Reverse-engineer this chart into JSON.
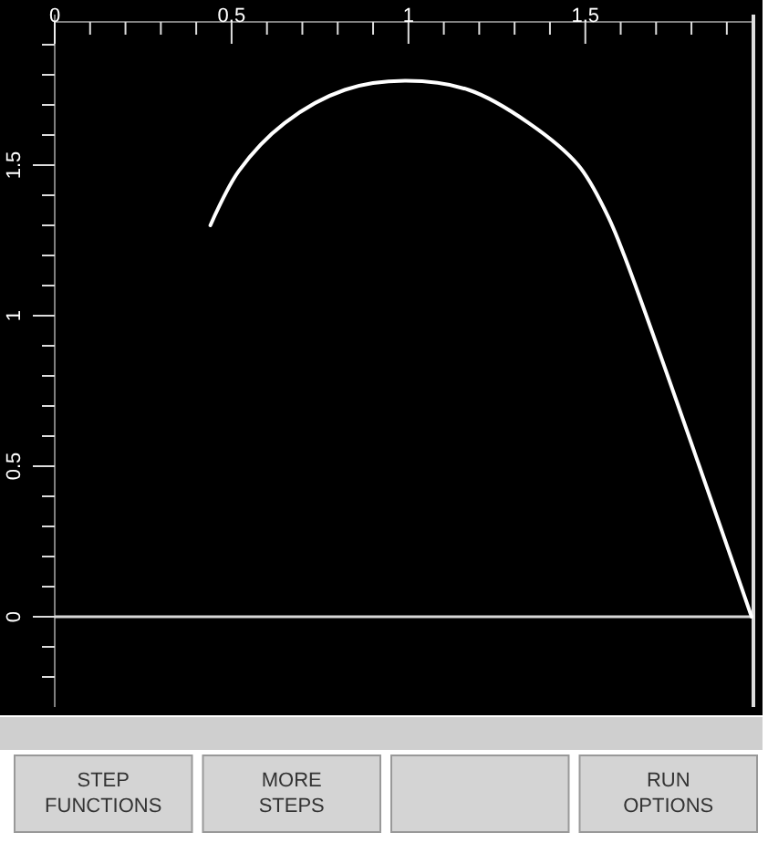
{
  "chart_data": {
    "type": "line",
    "x": [
      0.44,
      0.52,
      0.65,
      0.82,
      0.99,
      1.17,
      1.34,
      1.48,
      1.56,
      1.61,
      1.97
    ],
    "series": [
      {
        "color": "#ffffff",
        "values": [
          1.3,
          1.48,
          1.64,
          1.75,
          1.78,
          1.75,
          1.64,
          1.5,
          1.34,
          1.2,
          0
        ]
      }
    ],
    "xlim": [
      0,
      1.97
    ],
    "xticks": [
      0,
      {
        "value": 0.1,
        "label": null
      },
      {
        "value": 0.2,
        "label": null
      },
      {
        "value": 0.3,
        "label": null
      },
      {
        "value": 0.4,
        "label": null
      },
      0.5,
      {
        "value": 0.6,
        "label": null
      },
      {
        "value": 0.7,
        "label": null
      },
      {
        "value": 0.8,
        "label": null
      },
      {
        "value": 0.9,
        "label": null
      },
      1,
      {
        "value": 1.1,
        "label": null
      },
      {
        "value": 1.2,
        "label": null
      },
      {
        "value": 1.3,
        "label": null
      },
      {
        "value": 1.4,
        "label": null
      },
      1.5,
      {
        "value": 1.6,
        "label": null
      },
      {
        "value": 1.7,
        "label": null
      },
      {
        "value": 1.8,
        "label": null
      },
      {
        "value": 1.9,
        "label": null
      }
    ],
    "ylim": [
      -0.3,
      2
    ],
    "yticks": [
      {
        "value": -0.2,
        "label": null
      },
      {
        "value": -0.1,
        "label": null
      },
      0,
      {
        "value": 0.1,
        "label": null
      },
      {
        "value": 0.2,
        "label": null
      },
      {
        "value": 0.3,
        "label": null
      },
      {
        "value": 0.4,
        "label": null
      },
      0.5,
      {
        "value": 0.6,
        "label": null
      },
      {
        "value": 0.7,
        "label": null
      },
      {
        "value": 0.8,
        "label": null
      },
      {
        "value": 0.9,
        "label": null
      },
      1,
      {
        "value": 1.1,
        "label": null
      },
      {
        "value": 1.2,
        "label": null
      },
      {
        "value": 1.3,
        "label": null
      },
      {
        "value": 1.4,
        "label": null
      },
      1.5,
      {
        "value": 1.6,
        "label": null
      },
      {
        "value": 1.7,
        "label": null
      },
      {
        "value": 1.8,
        "label": null
      },
      {
        "value": 1.9,
        "label": null
      }
    ],
    "ref_lines": [
      {
        "axis": "y",
        "value": 0,
        "color": "#d8d8d8"
      }
    ],
    "grid": false,
    "marker": "none",
    "line_style": "solid",
    "annotations": [
      "STEP FUNCTIONS",
      "MORE STEPS",
      "RUN OPTIONS"
    ]
  }
}
